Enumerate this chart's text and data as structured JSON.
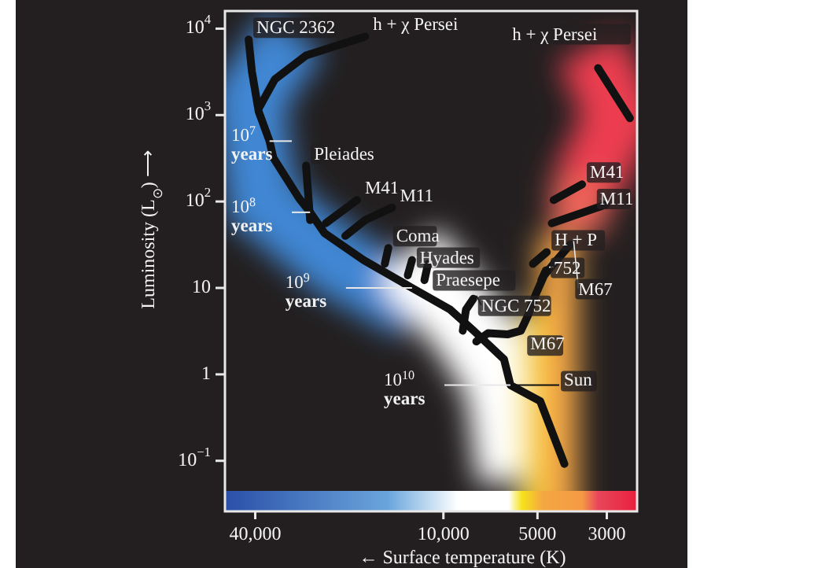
{
  "chart_data": {
    "type": "line",
    "xlabel": "← Surface temperature (K)",
    "ylabel": "Luminosity (L$_{⊙}$) ⟶",
    "log": "xy",
    "xlim": [
      50000,
      2400
    ],
    "xticks": [
      {
        "value": 40000,
        "label": "40,000"
      },
      {
        "value": 10000,
        "label": "10,000"
      },
      5000,
      3000
    ],
    "ylim": [
      0.026,
      16000
    ],
    "yticks": [
      {
        "value": 0.1,
        "label": "10$^{−1}$"
      },
      1,
      10,
      {
        "value": 100,
        "label": "10$^{2}$"
      },
      {
        "value": 1000,
        "label": "10$^{3}$"
      },
      {
        "value": 10000,
        "label": "10$^{4}$"
      }
    ],
    "series": [
      {
        "name": "NGC 2362",
        "color": "#111111",
        "x": [
          42000,
          41000,
          39000,
          36000,
          35000,
          29000,
          26700,
          24000,
          18000,
          12600,
          9500,
          8000,
          6400,
          6100,
          4900,
          4100
        ],
        "values": [
          7500,
          3200,
          1100,
          500,
          320,
          110,
          75,
          43,
          21,
          10,
          5.6,
          3.2,
          1.5,
          0.75,
          0.49,
          0.092
        ]
      },
      {
        "name": "h + χ Persei",
        "color": "#111111",
        "x": [
          38800,
          34600,
          27500,
          17800
        ],
        "values": [
          1230,
          2600,
          4900,
          8100
        ]
      },
      {
        "name": "h + χ Persei",
        "color": "#111111",
        "x": [
          3200,
          2530
        ],
        "values": [
          3500,
          920
        ]
      },
      {
        "name": "Pleiades",
        "color": "#111111",
        "x": [
          27500,
          26700
        ],
        "values": [
          260,
          61
        ]
      },
      {
        "name": "M41",
        "color": "#111111",
        "x": [
          18900,
          23800
        ],
        "values": [
          104,
          56
        ]
      },
      {
        "name": "M41",
        "color": "#111111",
        "x": [
          4440,
          3600
        ],
        "values": [
          104,
          158
        ]
      },
      {
        "name": "M11",
        "color": "#111111",
        "x": [
          14600,
          17800,
          20600
        ],
        "values": [
          85,
          61,
          40
        ]
      },
      {
        "name": "M11",
        "color": "#111111",
        "x": [
          4500,
          3020
        ],
        "values": [
          56,
          92
        ]
      },
      {
        "name": "Coma",
        "color": "#111111",
        "x": [
          15000,
          15400
        ],
        "values": [
          29,
          19
        ]
      },
      {
        "name": "Hyades",
        "color": "#111111",
        "x": [
          12600,
          13000
        ],
        "values": [
          21,
          14
        ]
      },
      {
        "name": "Praesepe",
        "color": "#111111",
        "x": [
          11200,
          11500
        ],
        "values": [
          19,
          12.3
        ]
      },
      {
        "name": "H + P",
        "color": "#111111",
        "x": [
          5170,
          4670
        ],
        "values": [
          19,
          26
        ]
      },
      {
        "name": "NGC 752",
        "color": "#111111",
        "x": [
          8670,
          8470,
          8020
        ],
        "values": [
          3.2,
          5.6,
          7.5
        ]
      },
      {
        "name": "752",
        "color": "#111111",
        "x": [
          4860,
          4700
        ],
        "values": [
          12.3,
          16
        ]
      },
      {
        "name": "M67",
        "color": "#111111",
        "x": [
          7850,
          7200,
          6240,
          5650,
          5350,
          5060,
          4760,
          4440,
          3920
        ],
        "values": [
          2.4,
          3.0,
          2.9,
          3.2,
          4.9,
          8.5,
          14,
          19,
          32
        ]
      }
    ],
    "annotations": [
      {
        "text": "10$^{7}$\nyears",
        "x": 36000,
        "y": 500
      },
      {
        "text": "10$^{8}$\nyears",
        "x": 26700,
        "y": 75
      },
      {
        "text": "10$^{9}$\nyears",
        "x": 12600,
        "y": 10
      },
      {
        "text": "10$^{10}$\nyears",
        "x": 6100,
        "y": 0.75
      },
      {
        "text": "Sun",
        "x": 6100,
        "y": 0.75
      },
      {
        "text": "M67",
        "x": 5650,
        "y": 3.2
      }
    ]
  }
}
